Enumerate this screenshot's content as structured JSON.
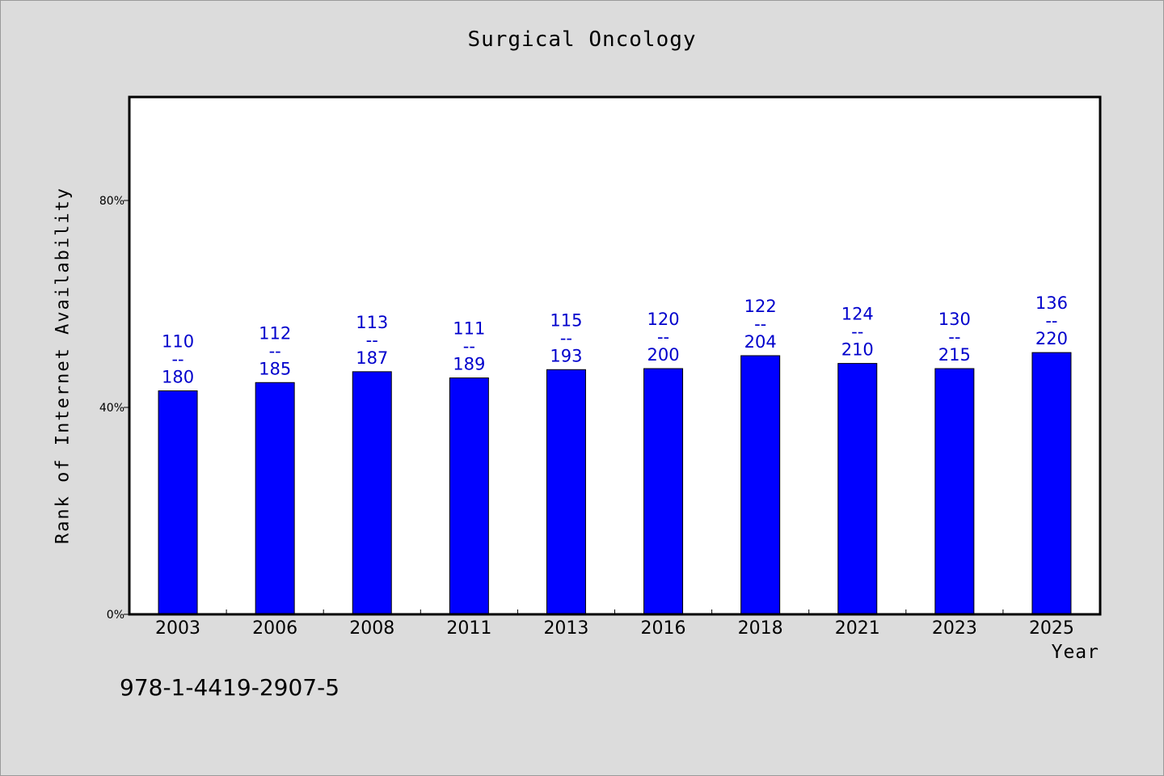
{
  "footer_code": "978-1-4419-2907-5",
  "colors": {
    "bar": "#0000ff",
    "label": "#0000cc",
    "background": "#dcdcdc",
    "plot_background": "#ffffff"
  },
  "chart_data": {
    "type": "bar",
    "title": "Surgical Oncology",
    "xlabel": "Year",
    "ylabel": "Rank of Internet Availability",
    "categories": [
      "2003",
      "2006",
      "2008",
      "2011",
      "2013",
      "2016",
      "2018",
      "2021",
      "2023",
      "2025"
    ],
    "values": [
      43.2,
      44.8,
      46.9,
      45.7,
      47.3,
      47.5,
      50.0,
      48.5,
      47.5,
      50.6
    ],
    "bar_labels": [
      {
        "rank": "110",
        "separator": "--",
        "total": "180"
      },
      {
        "rank": "112",
        "separator": "--",
        "total": "185"
      },
      {
        "rank": "113",
        "separator": "--",
        "total": "187"
      },
      {
        "rank": "111",
        "separator": "--",
        "total": "189"
      },
      {
        "rank": "115",
        "separator": "--",
        "total": "193"
      },
      {
        "rank": "120",
        "separator": "--",
        "total": "200"
      },
      {
        "rank": "122",
        "separator": "--",
        "total": "204"
      },
      {
        "rank": "124",
        "separator": "--",
        "total": "210"
      },
      {
        "rank": "130",
        "separator": "--",
        "total": "215"
      },
      {
        "rank": "136",
        "separator": "--",
        "total": "220"
      }
    ],
    "ylim": [
      0,
      100
    ],
    "yticks": [
      0,
      40,
      80
    ],
    "ytick_labels": [
      "0%",
      "40%",
      "80%"
    ],
    "grid": false,
    "legend": "none"
  }
}
